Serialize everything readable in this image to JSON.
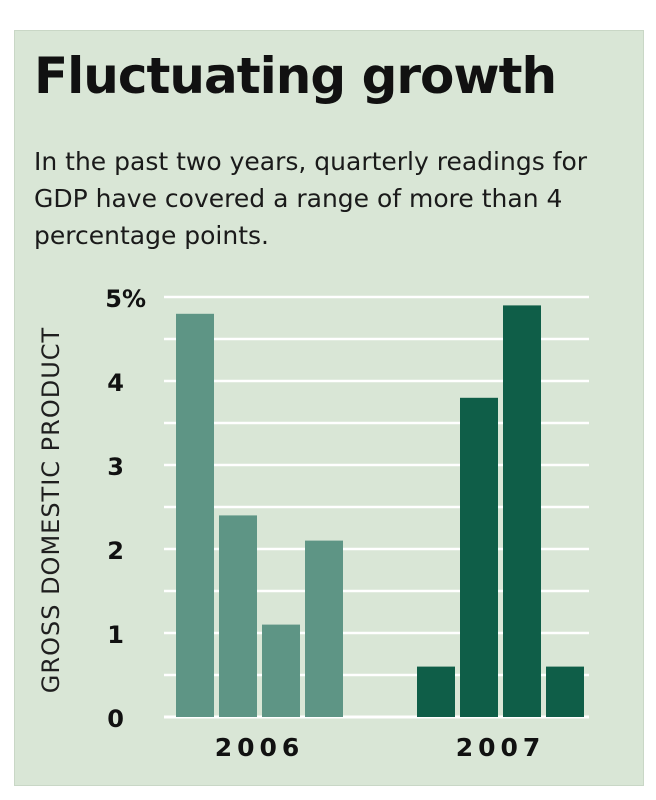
{
  "title": "Fluctuating growth",
  "subtitle": "In the past two years, quarterly readings for GDP have covered a range of more than 4 percentage points.",
  "chart_data": {
    "type": "bar",
    "ylabel": "GROSS DOMESTIC PRODUCT",
    "ylim": [
      0,
      5
    ],
    "yticks": [
      "0",
      "1",
      "2",
      "3",
      "4",
      "5%"
    ],
    "grid": true,
    "groups": [
      {
        "label": "2006",
        "values": [
          4.8,
          2.4,
          1.1,
          2.1
        ],
        "color": "#5e9585"
      },
      {
        "label": "2007",
        "values": [
          0.6,
          3.8,
          4.9,
          0.6
        ],
        "color": "#0f5e48"
      }
    ],
    "background": "#d9e6d6",
    "grid_color": "#ffffff"
  }
}
